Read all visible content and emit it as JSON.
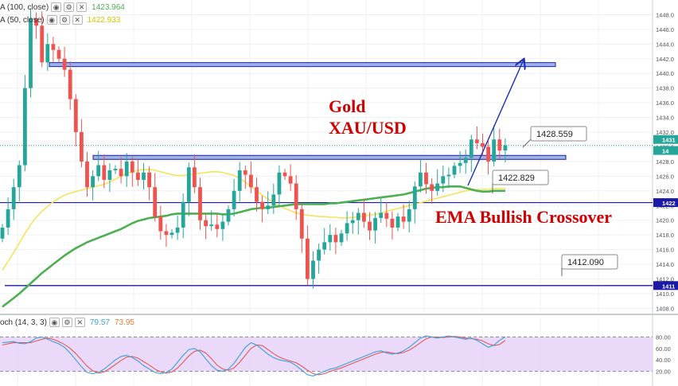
{
  "colors": {
    "up": "#26a69a",
    "down": "#ef5350",
    "ema100": "#4caf50",
    "ema50": "#f7e35a",
    "level_line": "#1a1aa6",
    "annotation_red": "#d00000",
    "arrow": "#1a2eb8",
    "stoch_k": "#3aa0d8",
    "stoch_d": "#e05a5a",
    "stoch_band": "#e6cff7"
  },
  "indicators": [
    {
      "label": "A (100, close)",
      "value": "1423.964",
      "color": "#4caf50"
    },
    {
      "label": "A (50, close)",
      "value": "1422.933",
      "color": "#d8c400"
    }
  ],
  "stoch_legend": {
    "label": "och (14, 3, 3)",
    "k": "79.57",
    "d": "73.95"
  },
  "annotations": {
    "title1": "Gold",
    "title2": "XAU/USD",
    "crossover": "EMA Bullish Crossover"
  },
  "callouts": [
    "1428.559",
    "1422.829",
    "1412.090"
  ],
  "chart_data": {
    "type": "candlestick",
    "y_axis": {
      "range": [
        1407.5,
        1450
      ],
      "ticks": [
        1408,
        1410,
        1412,
        1414,
        1416,
        1418,
        1420,
        1422,
        1424,
        1426,
        1428,
        1430,
        1432,
        1434,
        1436,
        1438,
        1440,
        1442,
        1444,
        1446,
        1448
      ],
      "tick_labels": [
        "1408.0",
        "1410.0",
        "1412.0",
        "1414.0",
        "1416.0",
        "1418.0",
        "1420.0",
        "1422.0",
        "1424.0",
        "1426.0",
        "1428.0",
        "1430.0",
        "1432.0",
        "1434.0",
        "1436.0",
        "1438.0",
        "1440.0",
        "1442.0",
        "1444.0",
        "1446.0",
        "1448.0"
      ],
      "price_badges": [
        {
          "value": 1431.0,
          "label": "1431",
          "color": "#26a69a"
        },
        {
          "value": 1429.5,
          "label": "14",
          "color": "#26a69a"
        },
        {
          "value": 1422.4,
          "label": "1422",
          "color": "#1a1aa6"
        },
        {
          "value": 1411.1,
          "label": "1411",
          "color": "#1a1aa6"
        }
      ]
    },
    "close": [
      1419.0,
      1421.5,
      1424.5,
      1427.5,
      1438.0,
      1447.5,
      1446.5,
      1441.5,
      1444.0,
      1443.2,
      1442.0,
      1440.5,
      1436.5,
      1432.0,
      1428.0,
      1424.5,
      1426.0,
      1427.5,
      1425.5,
      1426.8,
      1427.0,
      1426.0,
      1428.0,
      1426.5,
      1425.5,
      1426.5,
      1424.5,
      1420.5,
      1418.5,
      1418.0,
      1418.3,
      1419.0,
      1422.5,
      1427.2,
      1424.5,
      1420.0,
      1419.2,
      1419.4,
      1418.8,
      1419.8,
      1421.5,
      1424.0,
      1426.8,
      1426.2,
      1424.5,
      1422.5,
      1421.5,
      1422.0,
      1423.5,
      1426.5,
      1426.0,
      1425.0,
      1421.5,
      1417.5,
      1412.0,
      1414.5,
      1416.0,
      1417.0,
      1418.0,
      1417.0,
      1418.2,
      1419.6,
      1420.0,
      1421.0,
      1419.8,
      1418.6,
      1420.3,
      1421.0,
      1420.2,
      1419.0,
      1420.5,
      1419.8,
      1421.5,
      1424.6,
      1426.5,
      1424.9,
      1424.0,
      1425.0,
      1426.0,
      1426.2,
      1427.4,
      1427.8,
      1428.5,
      1431.0,
      1430.5,
      1430.0,
      1428.0,
      1431.0,
      1429.5,
      1430.2
    ],
    "ema100": [
      1408.2,
      1408.8,
      1409.4,
      1410.0,
      1410.7,
      1411.4,
      1412.1,
      1412.8,
      1413.4,
      1414.0,
      1414.6,
      1415.2,
      1415.7,
      1416.2,
      1416.6,
      1417.0,
      1417.3,
      1417.6,
      1417.9,
      1418.2,
      1418.5,
      1418.8,
      1419.2,
      1419.6,
      1419.9,
      1420.1,
      1420.3,
      1420.4,
      1420.5,
      1420.6,
      1420.8,
      1420.9,
      1420.9,
      1420.9,
      1420.9,
      1420.9,
      1420.9,
      1420.9,
      1420.9,
      1420.8,
      1420.8,
      1420.9,
      1421.1,
      1421.3,
      1421.5,
      1421.6,
      1421.7,
      1421.7,
      1421.8,
      1421.9,
      1422.0,
      1422.1,
      1422.2,
      1422.2,
      1422.2,
      1422.2,
      1422.2,
      1422.2,
      1422.3,
      1422.3,
      1422.4,
      1422.5,
      1422.6,
      1422.7,
      1422.8,
      1422.9,
      1423.0,
      1423.1,
      1423.2,
      1423.3,
      1423.4,
      1423.5,
      1423.7,
      1423.9,
      1424.1,
      1424.3,
      1424.4,
      1424.5,
      1424.5,
      1424.6,
      1424.6,
      1424.6,
      1424.4,
      1424.2,
      1424.0,
      1423.9,
      1423.9,
      1424.0,
      1424.0,
      1424.0
    ],
    "ema50": [
      1413.2,
      1414.4,
      1415.6,
      1416.9,
      1418.2,
      1419.4,
      1420.4,
      1421.2,
      1421.9,
      1422.5,
      1423.0,
      1423.4,
      1423.7,
      1423.9,
      1424.1,
      1424.3,
      1424.5,
      1424.7,
      1424.9,
      1425.2,
      1425.6,
      1426.0,
      1426.4,
      1426.6,
      1426.8,
      1426.9,
      1426.9,
      1426.8,
      1426.6,
      1426.4,
      1426.2,
      1426.1,
      1426.1,
      1426.2,
      1426.3,
      1426.4,
      1426.5,
      1426.6,
      1426.6,
      1426.5,
      1426.3,
      1426.1,
      1425.7,
      1425.2,
      1424.6,
      1424.0,
      1423.4,
      1422.9,
      1422.4,
      1422.0,
      1421.6,
      1421.3,
      1421.0,
      1420.8,
      1420.7,
      1420.6,
      1420.5,
      1420.5,
      1420.4,
      1420.4,
      1420.3,
      1420.3,
      1420.4,
      1420.5,
      1420.6,
      1420.7,
      1420.8,
      1421.0,
      1421.2,
      1421.4,
      1421.6,
      1421.8,
      1422.0,
      1422.2,
      1422.4,
      1422.6,
      1422.8,
      1423.0,
      1423.2,
      1423.4,
      1423.6,
      1423.8,
      1424.0,
      1424.1,
      1424.2,
      1424.2,
      1424.2,
      1424.3,
      1424.3,
      1424.3
    ],
    "levels": [
      {
        "name": "top-channel",
        "value": 1441.2,
        "style": "double"
      },
      {
        "name": "resistance",
        "value": 1428.559,
        "style": "double"
      },
      {
        "name": "mid",
        "value": 1422.4,
        "style": "single"
      },
      {
        "name": "support",
        "value": 1411.1,
        "style": "single"
      }
    ],
    "stochastic": {
      "range": [
        0,
        100
      ],
      "ticks": [
        20,
        40,
        60,
        80
      ],
      "tick_labels": [
        "20.00",
        "40.00",
        "60.00",
        "80.00"
      ],
      "band": [
        20,
        80
      ],
      "k": [
        70,
        71,
        72,
        69,
        68,
        72,
        78,
        80,
        76,
        72,
        68,
        62,
        52,
        40,
        28,
        18,
        16,
        18,
        24,
        32,
        40,
        46,
        48,
        44,
        38,
        30,
        24,
        18,
        16,
        18,
        24,
        36,
        48,
        58,
        60,
        54,
        42,
        30,
        22,
        20,
        24,
        34,
        48,
        62,
        70,
        66,
        58,
        50,
        44,
        40,
        38,
        36,
        30,
        22,
        14,
        12,
        16,
        20,
        24,
        26,
        30,
        34,
        38,
        42,
        46,
        50,
        54,
        56,
        52,
        50,
        52,
        56,
        62,
        70,
        78,
        82,
        80,
        78,
        80,
        82,
        80,
        78,
        76,
        78,
        74,
        68,
        62,
        66,
        74,
        80
      ],
      "d": [
        66,
        68,
        70,
        70,
        70,
        70,
        73,
        76,
        78,
        76,
        72,
        67,
        60,
        51,
        40,
        29,
        21,
        17,
        19,
        25,
        32,
        39,
        45,
        46,
        43,
        37,
        31,
        24,
        19,
        17,
        19,
        26,
        36,
        47,
        55,
        57,
        52,
        42,
        31,
        24,
        22,
        26,
        36,
        48,
        60,
        66,
        65,
        58,
        51,
        45,
        41,
        38,
        35,
        29,
        22,
        16,
        14,
        16,
        20,
        23,
        26,
        30,
        34,
        38,
        42,
        46,
        50,
        53,
        54,
        52,
        51,
        53,
        57,
        63,
        70,
        77,
        80,
        80,
        79,
        80,
        81,
        80,
        78,
        77,
        76,
        73,
        68,
        65,
        67,
        74
      ]
    }
  }
}
